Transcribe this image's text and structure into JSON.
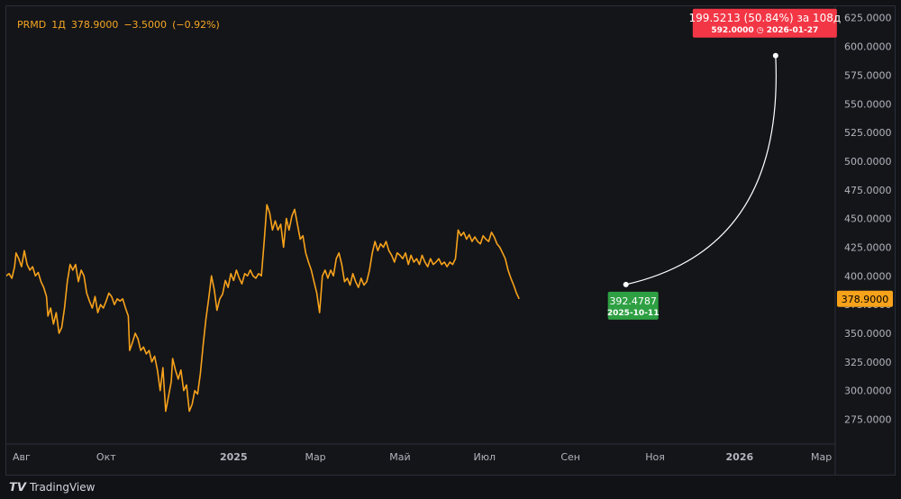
{
  "legend": {
    "symbol": "PRMD",
    "interval": "1Д",
    "last": "378.9000",
    "change": "−3.5000",
    "change_pct": "(−0.92%)"
  },
  "footer": {
    "brand": "TradingView"
  },
  "colors": {
    "line": "#f7a21b",
    "projection": "#ffffff",
    "target_box": "#f23645",
    "start_box": "#2ea043",
    "price_badge": "#f7a21b"
  },
  "price_badge": "378.9000",
  "projection": {
    "start": {
      "date": "2025-10-11",
      "value": 392.4787,
      "value_label": "392.4787",
      "date_label": "2025-10-11"
    },
    "end": {
      "date": "2026-01-27",
      "value": 592.0,
      "headline": "199.5213 (50.84%) за 108д",
      "value_label": "592.0000",
      "date_label": "2026-01-27"
    }
  },
  "chart_data": {
    "type": "line",
    "title": "",
    "xlabel": "",
    "ylabel": "",
    "ylim": [
      255,
      635
    ],
    "xlim": [
      "2024-07-21",
      "2026-03-11"
    ],
    "x_ticks": [
      {
        "date": "2024-08-01",
        "label": "Авг"
      },
      {
        "date": "2024-10-01",
        "label": "Окт"
      },
      {
        "date": "2025-01-01",
        "label": "2025"
      },
      {
        "date": "2025-03-01",
        "label": "Мар"
      },
      {
        "date": "2025-05-01",
        "label": "Май"
      },
      {
        "date": "2025-07-01",
        "label": "Июл"
      },
      {
        "date": "2025-09-01",
        "label": "Сен"
      },
      {
        "date": "2025-11-01",
        "label": "Ноя"
      },
      {
        "date": "2026-01-01",
        "label": "2026"
      },
      {
        "date": "2026-03-01",
        "label": "Мар"
      }
    ],
    "y_ticks": [
      {
        "value": 275,
        "label": "275.0000"
      },
      {
        "value": 300,
        "label": "300.0000"
      },
      {
        "value": 325,
        "label": "325.0000"
      },
      {
        "value": 350,
        "label": "350.0000"
      },
      {
        "value": 375,
        "label": "375.0000"
      },
      {
        "value": 400,
        "label": "400.0000"
      },
      {
        "value": 425,
        "label": "425.0000"
      },
      {
        "value": 450,
        "label": "450.0000"
      },
      {
        "value": 475,
        "label": "475.0000"
      },
      {
        "value": 500,
        "label": "500.0000"
      },
      {
        "value": 525,
        "label": "525.0000"
      },
      {
        "value": 550,
        "label": "550.0000"
      },
      {
        "value": 575,
        "label": "575.0000"
      },
      {
        "value": 600,
        "label": "600.0000"
      },
      {
        "value": 625,
        "label": "625.0000"
      }
    ],
    "grid": false,
    "series": [
      {
        "points": [
          [
            "2024-07-21",
            400
          ],
          [
            "2024-07-23",
            402
          ],
          [
            "2024-07-25",
            398
          ],
          [
            "2024-07-27",
            408
          ],
          [
            "2024-07-28",
            420
          ],
          [
            "2024-07-30",
            415
          ],
          [
            "2024-08-01",
            408
          ],
          [
            "2024-08-03",
            422
          ],
          [
            "2024-08-05",
            410
          ],
          [
            "2024-08-07",
            405
          ],
          [
            "2024-08-09",
            408
          ],
          [
            "2024-08-11",
            400
          ],
          [
            "2024-08-13",
            403
          ],
          [
            "2024-08-15",
            395
          ],
          [
            "2024-08-17",
            390
          ],
          [
            "2024-08-19",
            382
          ],
          [
            "2024-08-20",
            365
          ],
          [
            "2024-08-22",
            372
          ],
          [
            "2024-08-24",
            358
          ],
          [
            "2024-08-26",
            368
          ],
          [
            "2024-08-28",
            350
          ],
          [
            "2024-08-30",
            355
          ],
          [
            "2024-09-01",
            372
          ],
          [
            "2024-09-03",
            395
          ],
          [
            "2024-09-05",
            410
          ],
          [
            "2024-09-07",
            405
          ],
          [
            "2024-09-09",
            410
          ],
          [
            "2024-09-11",
            395
          ],
          [
            "2024-09-13",
            405
          ],
          [
            "2024-09-15",
            400
          ],
          [
            "2024-09-17",
            385
          ],
          [
            "2024-09-19",
            378
          ],
          [
            "2024-09-21",
            372
          ],
          [
            "2024-09-23",
            382
          ],
          [
            "2024-09-25",
            368
          ],
          [
            "2024-09-27",
            375
          ],
          [
            "2024-09-29",
            372
          ],
          [
            "2024-10-01",
            378
          ],
          [
            "2024-10-03",
            385
          ],
          [
            "2024-10-05",
            382
          ],
          [
            "2024-10-07",
            375
          ],
          [
            "2024-10-09",
            380
          ],
          [
            "2024-10-11",
            378
          ],
          [
            "2024-10-13",
            380
          ],
          [
            "2024-10-15",
            372
          ],
          [
            "2024-10-17",
            365
          ],
          [
            "2024-10-18",
            335
          ],
          [
            "2024-10-20",
            342
          ],
          [
            "2024-10-22",
            350
          ],
          [
            "2024-10-24",
            345
          ],
          [
            "2024-10-26",
            335
          ],
          [
            "2024-10-28",
            338
          ],
          [
            "2024-10-30",
            332
          ],
          [
            "2024-11-01",
            335
          ],
          [
            "2024-11-03",
            325
          ],
          [
            "2024-11-05",
            330
          ],
          [
            "2024-11-07",
            318
          ],
          [
            "2024-11-09",
            300
          ],
          [
            "2024-11-11",
            320
          ],
          [
            "2024-11-13",
            282
          ],
          [
            "2024-11-15",
            295
          ],
          [
            "2024-11-17",
            308
          ],
          [
            "2024-11-18",
            328
          ],
          [
            "2024-11-20",
            318
          ],
          [
            "2024-11-22",
            310
          ],
          [
            "2024-11-24",
            318
          ],
          [
            "2024-11-26",
            300
          ],
          [
            "2024-11-28",
            305
          ],
          [
            "2024-11-30",
            282
          ],
          [
            "2024-12-02",
            288
          ],
          [
            "2024-12-04",
            300
          ],
          [
            "2024-12-06",
            297
          ],
          [
            "2024-12-08",
            315
          ],
          [
            "2024-12-10",
            340
          ],
          [
            "2024-12-12",
            362
          ],
          [
            "2024-12-14",
            380
          ],
          [
            "2024-12-16",
            400
          ],
          [
            "2024-12-18",
            388
          ],
          [
            "2024-12-20",
            370
          ],
          [
            "2024-12-22",
            380
          ],
          [
            "2024-12-24",
            384
          ],
          [
            "2024-12-26",
            396
          ],
          [
            "2024-12-28",
            390
          ],
          [
            "2024-12-30",
            402
          ],
          [
            "2025-01-01",
            396
          ],
          [
            "2025-01-03",
            405
          ],
          [
            "2025-01-05",
            398
          ],
          [
            "2025-01-07",
            393
          ],
          [
            "2025-01-09",
            402
          ],
          [
            "2025-01-11",
            400
          ],
          [
            "2025-01-13",
            405
          ],
          [
            "2025-01-15",
            400
          ],
          [
            "2025-01-17",
            398
          ],
          [
            "2025-01-19",
            402
          ],
          [
            "2025-01-21",
            400
          ],
          [
            "2025-01-23",
            430
          ],
          [
            "2025-01-25",
            462
          ],
          [
            "2025-01-27",
            455
          ],
          [
            "2025-01-29",
            440
          ],
          [
            "2025-01-31",
            448
          ],
          [
            "2025-02-02",
            440
          ],
          [
            "2025-02-04",
            445
          ],
          [
            "2025-02-06",
            425
          ],
          [
            "2025-02-08",
            450
          ],
          [
            "2025-02-10",
            440
          ],
          [
            "2025-02-12",
            452
          ],
          [
            "2025-02-14",
            458
          ],
          [
            "2025-02-16",
            445
          ],
          [
            "2025-02-18",
            432
          ],
          [
            "2025-02-20",
            435
          ],
          [
            "2025-02-22",
            420
          ],
          [
            "2025-02-24",
            412
          ],
          [
            "2025-02-26",
            405
          ],
          [
            "2025-02-28",
            395
          ],
          [
            "2025-03-02",
            385
          ],
          [
            "2025-03-04",
            368
          ],
          [
            "2025-03-06",
            400
          ],
          [
            "2025-03-08",
            405
          ],
          [
            "2025-03-10",
            398
          ],
          [
            "2025-03-12",
            405
          ],
          [
            "2025-03-14",
            400
          ],
          [
            "2025-03-16",
            415
          ],
          [
            "2025-03-18",
            420
          ],
          [
            "2025-03-20",
            410
          ],
          [
            "2025-03-22",
            395
          ],
          [
            "2025-03-24",
            398
          ],
          [
            "2025-03-26",
            392
          ],
          [
            "2025-03-28",
            402
          ],
          [
            "2025-03-30",
            395
          ],
          [
            "2025-04-01",
            390
          ],
          [
            "2025-04-03",
            398
          ],
          [
            "2025-04-05",
            392
          ],
          [
            "2025-04-07",
            395
          ],
          [
            "2025-04-09",
            405
          ],
          [
            "2025-04-11",
            420
          ],
          [
            "2025-04-13",
            430
          ],
          [
            "2025-04-15",
            422
          ],
          [
            "2025-04-17",
            428
          ],
          [
            "2025-04-19",
            425
          ],
          [
            "2025-04-21",
            430
          ],
          [
            "2025-04-23",
            422
          ],
          [
            "2025-04-25",
            418
          ],
          [
            "2025-04-27",
            412
          ],
          [
            "2025-04-29",
            420
          ],
          [
            "2025-05-01",
            418
          ],
          [
            "2025-05-03",
            415
          ],
          [
            "2025-05-05",
            420
          ],
          [
            "2025-05-07",
            410
          ],
          [
            "2025-05-09",
            418
          ],
          [
            "2025-05-11",
            412
          ],
          [
            "2025-05-13",
            415
          ],
          [
            "2025-05-15",
            410
          ],
          [
            "2025-05-17",
            418
          ],
          [
            "2025-05-19",
            412
          ],
          [
            "2025-05-21",
            408
          ],
          [
            "2025-05-23",
            415
          ],
          [
            "2025-05-25",
            410
          ],
          [
            "2025-05-27",
            412
          ],
          [
            "2025-05-29",
            415
          ],
          [
            "2025-05-31",
            410
          ],
          [
            "2025-06-02",
            412
          ],
          [
            "2025-06-04",
            408
          ],
          [
            "2025-06-06",
            412
          ],
          [
            "2025-06-08",
            410
          ],
          [
            "2025-06-10",
            415
          ],
          [
            "2025-06-12",
            440
          ],
          [
            "2025-06-14",
            435
          ],
          [
            "2025-06-16",
            438
          ],
          [
            "2025-06-18",
            432
          ],
          [
            "2025-06-20",
            436
          ],
          [
            "2025-06-22",
            430
          ],
          [
            "2025-06-24",
            434
          ],
          [
            "2025-06-26",
            430
          ],
          [
            "2025-06-28",
            428
          ],
          [
            "2025-06-30",
            435
          ],
          [
            "2025-07-02",
            432
          ],
          [
            "2025-07-04",
            430
          ],
          [
            "2025-07-06",
            438
          ],
          [
            "2025-07-08",
            434
          ],
          [
            "2025-07-10",
            428
          ],
          [
            "2025-07-12",
            425
          ],
          [
            "2025-07-14",
            420
          ],
          [
            "2025-07-16",
            415
          ],
          [
            "2025-07-18",
            405
          ],
          [
            "2025-07-20",
            398
          ],
          [
            "2025-07-22",
            392
          ],
          [
            "2025-07-24",
            385
          ],
          [
            "2025-07-26",
            380
          ]
        ]
      }
    ]
  }
}
